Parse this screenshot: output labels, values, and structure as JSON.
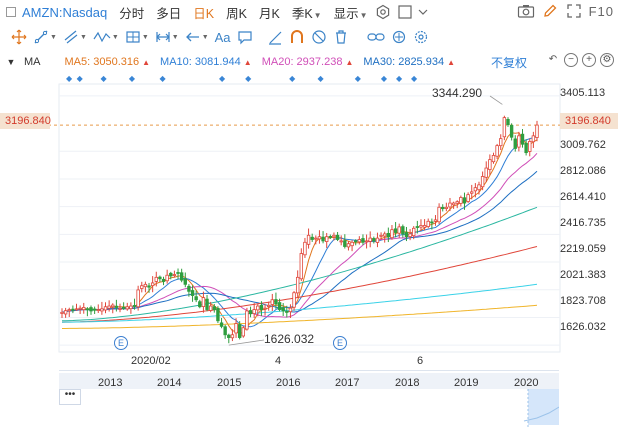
{
  "header": {
    "symbol": "AMZN:Nasdaq",
    "periods": [
      {
        "label": "分时",
        "active": false,
        "caret": false
      },
      {
        "label": "多日",
        "active": false,
        "caret": false
      },
      {
        "label": "日K",
        "active": true,
        "caret": false
      },
      {
        "label": "周K",
        "active": false,
        "caret": false
      },
      {
        "label": "月K",
        "active": false,
        "caret": false
      },
      {
        "label": "季K",
        "active": false,
        "caret": true
      },
      {
        "label": "显示",
        "active": false,
        "caret": true
      }
    ],
    "f10_label": "F10"
  },
  "tools": {
    "text_tool_label": "Aa"
  },
  "indicators": {
    "name": "MA",
    "items": [
      {
        "label": "MA5: 3050.316",
        "color": "#e0761e"
      },
      {
        "label": "MA10: 3081.944",
        "color": "#2f7fd6"
      },
      {
        "label": "MA20: 2937.238",
        "color": "#d04fb8"
      },
      {
        "label": "MA30: 2825.934",
        "color": "#1e6fc2"
      }
    ],
    "adjust_label": "不复权"
  },
  "axis": {
    "y_labels": [
      "3405.113",
      "3009.762",
      "2812.086",
      "2614.410",
      "2416.735",
      "2219.059",
      "2021.383",
      "1823.708",
      "1626.032"
    ],
    "current_price": "3196.840",
    "x_labels": [
      "2020/02",
      "4",
      "6"
    ]
  },
  "annotations": {
    "high": "3344.290",
    "low": "1626.032",
    "event_marker": "E"
  },
  "navigator": {
    "years": [
      "2013",
      "2014",
      "2015",
      "2016",
      "2017",
      "2018",
      "2019",
      "2020"
    ],
    "menu_label": "•••"
  },
  "chart_data": {
    "type": "candlestick",
    "title": "AMZN:Nasdaq",
    "period": "daily",
    "ylim": [
      1577,
      3490
    ],
    "y_ticks": [
      3405.113,
      3009.762,
      2812.086,
      2614.41,
      2416.735,
      2219.059,
      2021.383,
      1823.708,
      1626.032
    ],
    "current_price": 3196.84,
    "high": 3344.29,
    "low": 1626.032,
    "x_ticks": [
      "2020/02",
      "4",
      "6"
    ],
    "series_close": [
      1860,
      1872,
      1880,
      1876,
      1885,
      1890,
      1895,
      1880,
      1870,
      1875,
      1880,
      1885,
      1900,
      1905,
      1912,
      1895,
      1888,
      1893,
      1900,
      1905,
      1902,
      2020,
      2050,
      2060,
      2040,
      2070,
      2110,
      2100,
      2080,
      2125,
      2120,
      2130,
      2140,
      2090,
      2060,
      2010,
      1980,
      1950,
      1900,
      1965,
      1880,
      1905,
      1880,
      1800,
      1760,
      1700,
      1680,
      1700,
      1780,
      1680,
      1750,
      1870,
      1850,
      1880,
      1905,
      1880,
      1890,
      1910,
      1950,
      1920,
      1880,
      1870,
      1865,
      1890,
      2000,
      2110,
      2280,
      2360,
      2410,
      2380,
      2390,
      2400,
      2370,
      2400,
      2400,
      2410,
      2380,
      2370,
      2330,
      2350,
      2360,
      2370,
      2380,
      2360,
      2370,
      2390,
      2370,
      2390,
      2410,
      2420,
      2400,
      2450,
      2430,
      2470,
      2420,
      2400,
      2420,
      2460,
      2470,
      2480,
      2480,
      2510,
      2500,
      2520,
      2610,
      2600,
      2610,
      2640,
      2640,
      2650,
      2680,
      2640,
      2700,
      2720,
      2750,
      2770,
      2830,
      2890,
      2950,
      2980,
      3050,
      3100,
      3250,
      3200,
      3110,
      3030,
      3120,
      3060,
      3000,
      3080,
      3120,
      3196.84
    ],
    "ma_series": [
      {
        "name": "MA5",
        "color": "#e0761e",
        "last": 3050.316
      },
      {
        "name": "MA10",
        "color": "#2f7fd6",
        "last": 3081.944
      },
      {
        "name": "MA20",
        "color": "#d04fb8",
        "last": 2937.238
      },
      {
        "name": "MA30",
        "color": "#1e6fc2",
        "last": 2825.934
      }
    ]
  }
}
